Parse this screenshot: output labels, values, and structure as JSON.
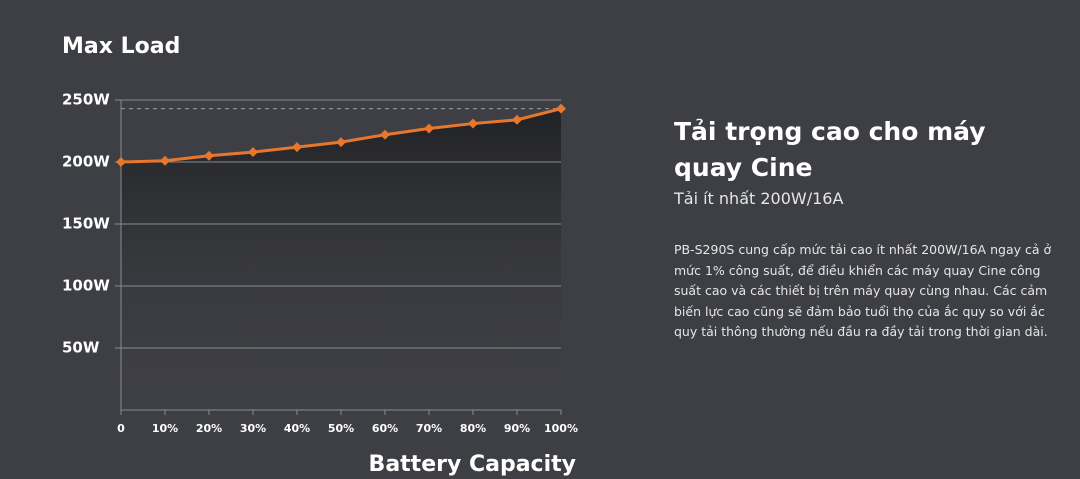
{
  "chart_data": {
    "type": "line",
    "title": "Max Load",
    "x_label": "Battery Capacity",
    "x": [
      0,
      10,
      20,
      30,
      40,
      50,
      60,
      70,
      80,
      90,
      100
    ],
    "series": [
      {
        "color": "#e8772e",
        "values": [
          200,
          201,
          205,
          208,
          212,
          216,
          222,
          227,
          231,
          234,
          243
        ]
      }
    ],
    "xlim": [
      0,
      100
    ],
    "xticks": [
      0,
      {
        "value": 10,
        "label": "10%"
      },
      {
        "value": 20,
        "label": "20%"
      },
      {
        "value": 30,
        "label": "30%"
      },
      {
        "value": 40,
        "label": "40%"
      },
      {
        "value": 50,
        "label": "50%"
      },
      {
        "value": 60,
        "label": "60%"
      },
      {
        "value": 70,
        "label": "70%"
      },
      {
        "value": 80,
        "label": "80%"
      },
      {
        "value": 90,
        "label": "90%"
      },
      {
        "value": 100,
        "label": "100%"
      }
    ],
    "ylim": [
      0,
      250
    ],
    "yticks": [
      {
        "value": 50,
        "label": "50W"
      },
      {
        "value": 100,
        "label": "100W"
      },
      {
        "value": 150,
        "label": "150W"
      },
      {
        "value": 200,
        "label": "200W"
      },
      {
        "value": 250,
        "label": "250W"
      }
    ],
    "grid": true
  },
  "text_panel": {
    "title": "Tải trọng cao cho máy quay Cine",
    "subtitle": "Tải ít nhất 200W/16A",
    "body": "PB-S290S cung cấp mức tải cao ít nhất 200W/16A ngay cả ở mức 1% công suất, để điều khiển các máy quay Cine công suất cao và các thiết bị trên máy quay cùng nhau. Các cảm biến lực cao cũng sẽ đảm bảo tuổi thọ của ắc quy so với ắc quy tải thông thường nếu đầu ra đầy tải trong thời gian dài."
  }
}
